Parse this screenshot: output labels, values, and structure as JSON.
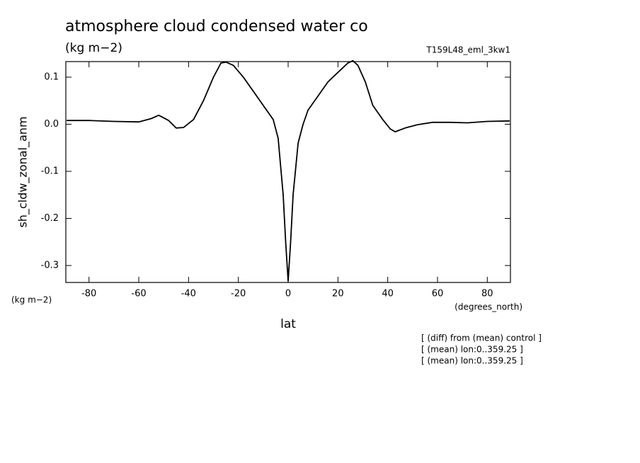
{
  "chart_data": {
    "type": "line",
    "title": "atmosphere cloud condensed water co",
    "subtitle": "(kg m−2)",
    "run_label": "T159L48_eml_3kw1",
    "y_label": "sh_cldw_zonal_anm",
    "y_units": "(kg m−2)",
    "x_units": "(degrees_north)",
    "x_label": "lat",
    "notes": [
      "[ (diff) from (mean) control ]",
      "[ (mean) lon:0..359.25 ]",
      "[ (mean) lon:0..359.25 ]"
    ],
    "color": "#000000",
    "x": [
      -89,
      -80,
      -70,
      -60,
      -55,
      -52,
      -48,
      -45,
      -42,
      -38,
      -34,
      -30,
      -27,
      -25,
      -22,
      -18,
      -14,
      -10,
      -6,
      -4,
      -2,
      -1,
      0,
      1,
      2,
      4,
      6,
      8,
      12,
      16,
      20,
      24,
      26,
      28,
      31,
      34,
      38,
      41,
      43,
      47,
      52,
      58,
      65,
      72,
      80,
      89
    ],
    "values": [
      0.008,
      0.008,
      0.006,
      0.005,
      0.012,
      0.019,
      0.008,
      -0.008,
      -0.007,
      0.01,
      0.05,
      0.1,
      0.13,
      0.132,
      0.125,
      0.1,
      0.07,
      0.04,
      0.01,
      -0.03,
      -0.15,
      -0.25,
      -0.333,
      -0.25,
      -0.15,
      -0.04,
      0.0,
      0.03,
      0.06,
      0.09,
      0.11,
      0.13,
      0.135,
      0.125,
      0.09,
      0.04,
      0.01,
      -0.01,
      -0.016,
      -0.008,
      -0.001,
      0.004,
      0.004,
      0.003,
      0.006,
      0.007
    ],
    "xlim": [
      -89.3,
      89.3
    ],
    "ylim": [
      -0.336,
      0.133
    ],
    "xticks": [
      -80,
      -60,
      -40,
      -20,
      0,
      20,
      40,
      60,
      80
    ],
    "yticks": [
      0.1,
      {
        "value": 0,
        "label": "0.0"
      },
      -0.1,
      -0.2,
      -0.3
    ]
  }
}
